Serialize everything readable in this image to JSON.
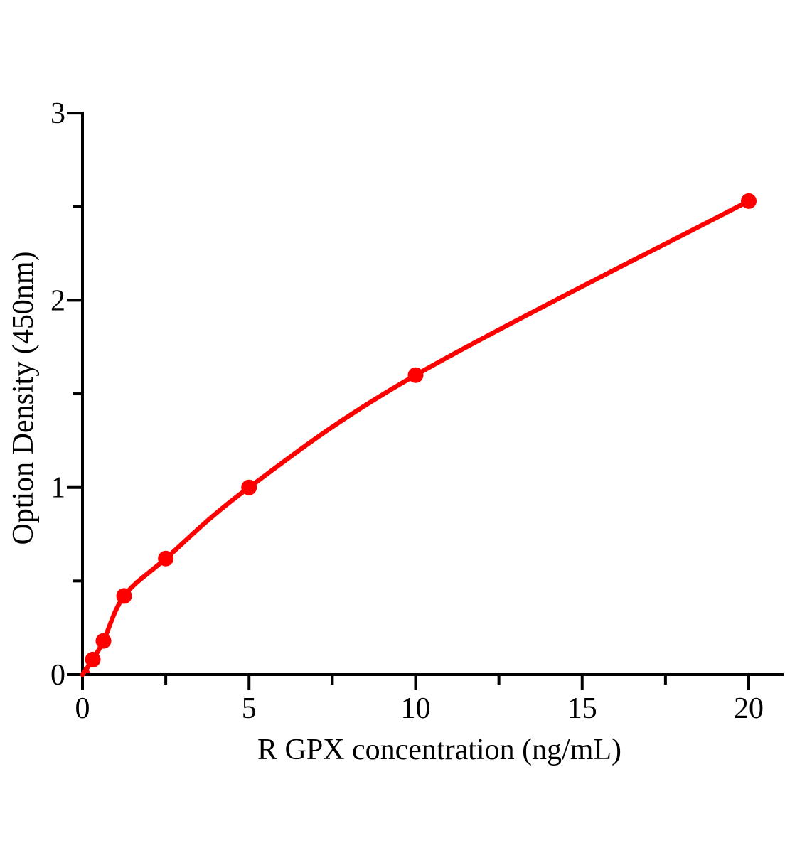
{
  "chart_data": {
    "type": "scatter",
    "title": "",
    "xlabel": "R GPX concentration（ng/mL）",
    "ylabel": "Option Density（450nm）",
    "points": [
      {
        "x": 0,
        "y": 0
      },
      {
        "x": 0.31,
        "y": 0.08
      },
      {
        "x": 0.63,
        "y": 0.18
      },
      {
        "x": 1.25,
        "y": 0.42
      },
      {
        "x": 2.5,
        "y": 0.62
      },
      {
        "x": 5,
        "y": 1.0
      },
      {
        "x": 10,
        "y": 1.6
      },
      {
        "x": 20,
        "y": 2.53
      }
    ],
    "curve": {
      "style": "smooth-through-points",
      "color": "#ff0000",
      "width": 6.5
    },
    "marker": {
      "shape": "circle",
      "radius": 11,
      "color": "#ff0000"
    },
    "x_axis": {
      "range": [
        0,
        21
      ],
      "major_ticks": [
        0,
        5,
        10,
        15,
        20
      ],
      "minor_ticks": [
        2.5,
        7.5,
        12.5,
        17.5
      ],
      "tick_labels": [
        "0",
        "5",
        "10",
        "15",
        "20"
      ]
    },
    "y_axis": {
      "range": [
        0,
        3
      ],
      "major_ticks": [
        0,
        1,
        2,
        3
      ],
      "minor_ticks": [
        0.5,
        1.5,
        2.5
      ],
      "tick_labels": [
        "0",
        "1",
        "2",
        "3"
      ]
    },
    "grid": false,
    "legend": null,
    "axis_color": "#000000",
    "background": "#ffffff"
  }
}
